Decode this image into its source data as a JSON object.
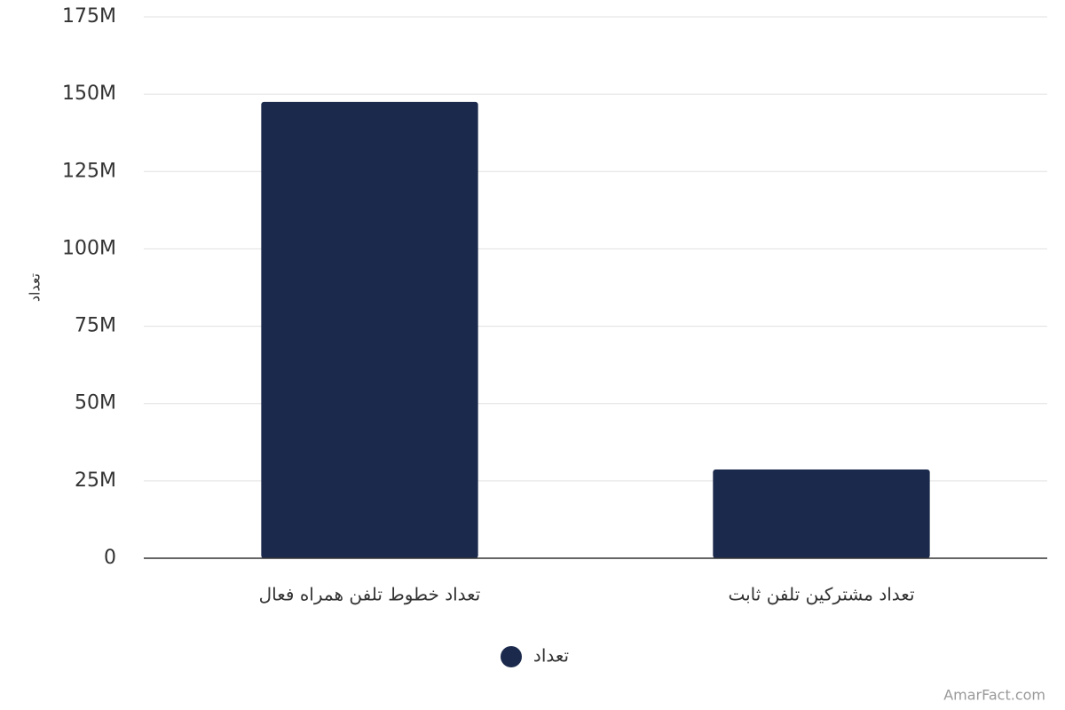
{
  "chart_data": {
    "type": "bar",
    "y_label": "تعداد",
    "categories": [
      "تعداد خطوط تلفن همراه فعال",
      "تعداد مشترکین تلفن ثابت"
    ],
    "series": [
      {
        "name": "تعداد",
        "color": "#1b2a4c",
        "values": [
          147500000,
          28700000
        ]
      }
    ],
    "ylim": [
      0,
      175000000
    ],
    "yticks": [
      0,
      {
        "value": 25000000,
        "label": "25M"
      },
      {
        "value": 50000000,
        "label": "50M"
      },
      {
        "value": 75000000,
        "label": "75M"
      },
      {
        "value": 100000000,
        "label": "100M"
      },
      {
        "value": 125000000,
        "label": "125M"
      },
      {
        "value": 150000000,
        "label": "150M"
      },
      {
        "value": 175000000,
        "label": "175M"
      }
    ],
    "grid": true,
    "legend": "bottom",
    "watermark": "AmarFact.com"
  }
}
